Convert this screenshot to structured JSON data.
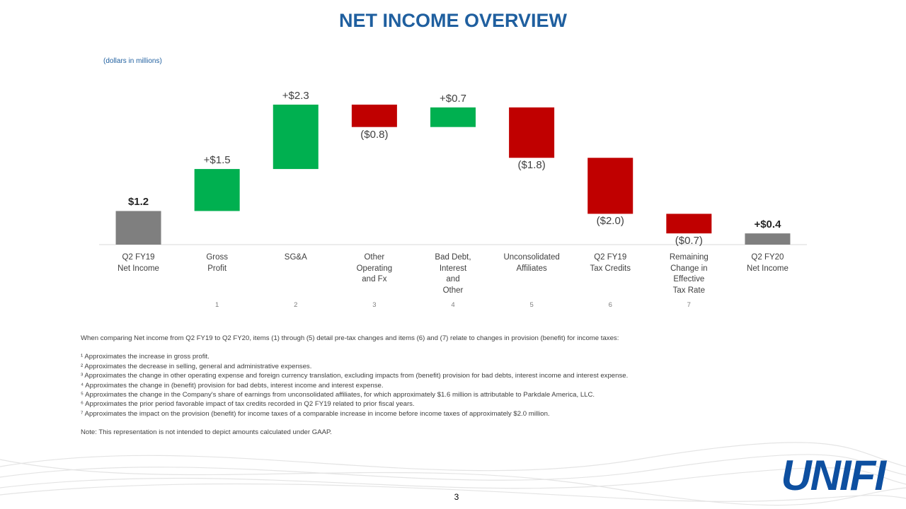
{
  "chart_data": {
    "type": "waterfall",
    "title": "NET INCOME OVERVIEW",
    "subtitle": "(dollars in millions)",
    "categories": [
      "Q2 FY19\nNet Income",
      "Gross\nProfit",
      "SG&A",
      "Other\nOperating\nand Fx",
      "Bad Debt,\nInterest\nand\nOther",
      "Unconsolidated\nAffiliates",
      "Q2 FY19\nTax Credits",
      "Remaining\nChange in\nEffective\nTax Rate",
      "Q2 FY20\nNet Income"
    ],
    "footnote_markers": [
      null,
      "1",
      "2",
      "3",
      "4",
      "5",
      "6",
      "7",
      null
    ],
    "values": [
      1.2,
      1.5,
      2.3,
      -0.8,
      0.7,
      -1.8,
      -2.0,
      -0.7,
      0.4
    ],
    "value_labels": [
      "$1.2",
      "+$1.5",
      "+$2.3",
      "($0.8)",
      "+$0.7",
      "($1.8)",
      "($2.0)",
      "($0.7)",
      "+$0.4"
    ],
    "total_indices": [
      0,
      8
    ],
    "colors": [
      "#7f7f7f",
      "#00b050",
      "#00b050",
      "#c00000",
      "#00b050",
      "#c00000",
      "#c00000",
      "#c00000",
      "#7f7f7f"
    ]
  },
  "notes": {
    "intro": "When comparing Net income from Q2 FY19 to Q2 FY20, items (1) through (5) detail pre-tax changes and items (6) and (7) relate to changes in provision (benefit) for income taxes:",
    "footnotes": [
      "¹ Approximates the increase in gross profit.",
      "² Approximates the decrease in selling, general and administrative expenses.",
      "³ Approximates the change in other operating expense and foreign currency translation, excluding impacts from (benefit) provision for bad debts, interest income and interest expense.",
      "⁴ Approximates the change in (benefit) provision for bad debts, interest income and interest expense.",
      "⁵ Approximates the change in the Company's share of earnings from unconsolidated affiliates, for which approximately $1.6 million is attributable to Parkdale America, LLC.",
      "⁶ Approximates the prior period favorable impact of tax credits recorded in Q2 FY19 related to prior fiscal years.",
      "⁷ Approximates the impact on the provision (benefit) for income taxes of a comparable increase in income before income taxes of approximately $2.0 million."
    ],
    "note": "Note: This representation is not intended to depict amounts calculated under GAAP."
  },
  "footer": {
    "page": "3",
    "logo": "UNIFI"
  }
}
